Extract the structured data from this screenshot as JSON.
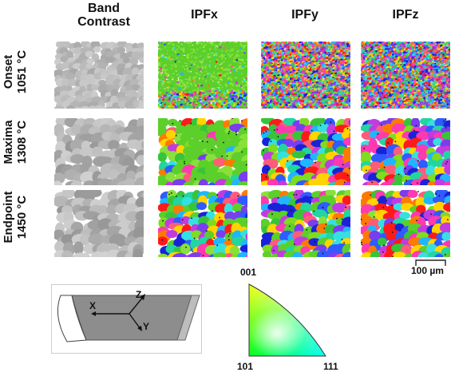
{
  "columns": {
    "band_contrast": "Band\nContrast",
    "ipfx": "IPFx",
    "ipfy": "IPFy",
    "ipfz": "IPFz"
  },
  "rows": [
    {
      "name": "Onset",
      "temp": "1051 °C"
    },
    {
      "name": "Maxima",
      "temp": "1308 °C"
    },
    {
      "name": "Endpoint",
      "temp": "1450 °C"
    }
  ],
  "scale_bar": {
    "label": "100 µm"
  },
  "specimen_axes": {
    "x": "X",
    "y": "Y",
    "z": "Z"
  },
  "ipf_key": {
    "top": "001",
    "bottom_left": "101",
    "bottom_right": "111"
  },
  "colors": {
    "grey_panel": "#b9b9b9",
    "specimen_fill": "#8d8d8d",
    "ipf_red": "#ff0000",
    "ipf_green": "#00ff00",
    "ipf_blue": "#0000ff"
  }
}
